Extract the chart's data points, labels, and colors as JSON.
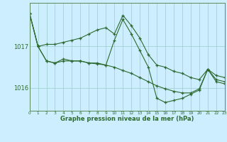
{
  "x": [
    0,
    1,
    2,
    3,
    4,
    5,
    6,
    7,
    8,
    9,
    10,
    11,
    12,
    13,
    14,
    15,
    16,
    17,
    18,
    19,
    20,
    21,
    22,
    23
  ],
  "line1": [
    1017.8,
    1017.0,
    1017.05,
    1017.05,
    1017.1,
    1017.15,
    1017.2,
    1017.3,
    1017.4,
    1017.45,
    1017.3,
    1017.75,
    1017.5,
    1017.2,
    1016.8,
    1016.55,
    1016.5,
    1016.4,
    1016.35,
    1016.25,
    1016.2,
    1016.45,
    1016.3,
    1016.25
  ],
  "line2": [
    1017.8,
    1017.0,
    1016.65,
    1016.6,
    1016.7,
    1016.65,
    1016.65,
    1016.6,
    1016.6,
    1016.55,
    1017.15,
    1017.65,
    1017.3,
    1016.9,
    1016.5,
    1015.75,
    1015.65,
    1015.7,
    1015.75,
    1015.85,
    1015.95,
    1016.45,
    1016.15,
    1016.1
  ],
  "line3": [
    1017.8,
    1017.0,
    1016.65,
    1016.6,
    1016.65,
    1016.65,
    1016.65,
    1016.6,
    1016.58,
    1016.55,
    1016.5,
    1016.42,
    1016.35,
    1016.25,
    1016.15,
    1016.05,
    1015.98,
    1015.92,
    1015.88,
    1015.88,
    1015.98,
    1016.45,
    1016.2,
    1016.15
  ],
  "line_color": "#2d6a2d",
  "bg_color": "#cceeff",
  "grid_color": "#99cccc",
  "ylabel_ticks": [
    1016,
    1017
  ],
  "xlabel": "Graphe pression niveau de la mer (hPa)",
  "xlim": [
    0,
    23
  ],
  "ylim": [
    1015.45,
    1018.05
  ],
  "figwidth": 3.2,
  "figheight": 2.0,
  "dpi": 100
}
